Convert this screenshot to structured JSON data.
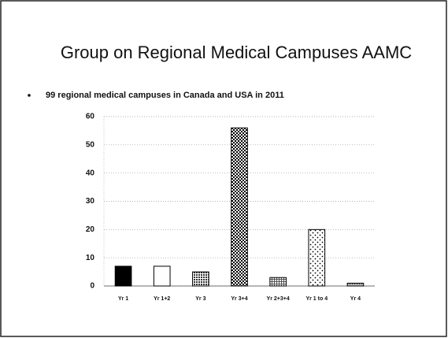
{
  "chart_data": {
    "type": "bar",
    "title": "Group on Regional Medical Campuses AAMC",
    "subtitle": "99 regional medical campuses in Canada and USA in 2011",
    "categories": [
      "Yr 1",
      "Yr 1+2",
      "Yr 3",
      "Yr 3+4",
      "Yr 2+3+4",
      "Yr 1 to 4",
      "Yr 4"
    ],
    "values": [
      7,
      7,
      5,
      56,
      3,
      20,
      1
    ],
    "color": "#000000",
    "ylim": [
      0,
      60
    ],
    "yticks": [
      0,
      10,
      20,
      30,
      40,
      50,
      60
    ],
    "grid": true
  }
}
